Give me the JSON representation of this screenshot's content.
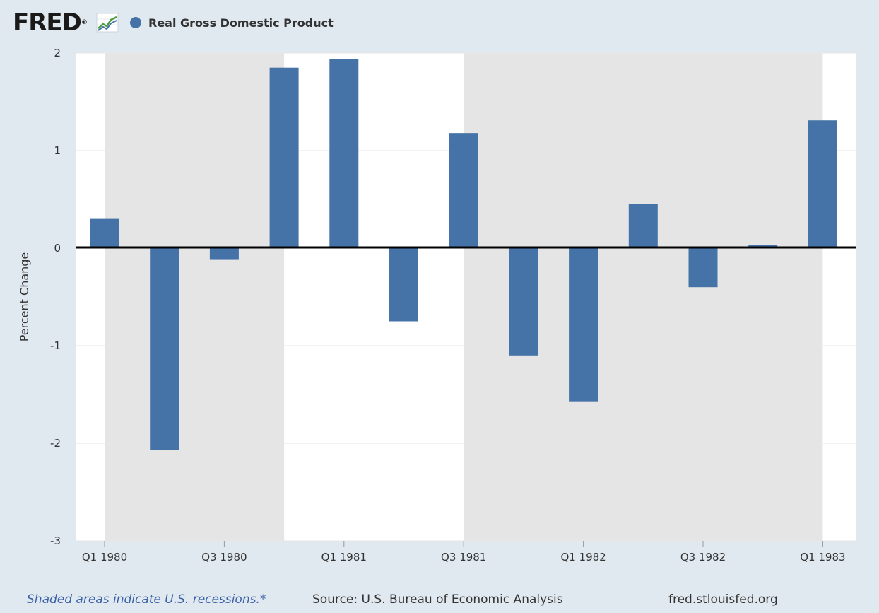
{
  "header": {
    "logo_text": "FRED",
    "logo_registered": "®",
    "legend_label": "Real Gross Domestic Product"
  },
  "colors": {
    "series": "#4572a7",
    "recession_shading": "#e5e5e5",
    "plot_background": "#ffffff",
    "page_background": "#e1e9f0",
    "zero_line": "#000000",
    "note_link": "#3b62a6"
  },
  "footer": {
    "note": "Shaded areas indicate U.S. recessions.*",
    "source": "Source: U.S. Bureau of Economic Analysis",
    "url": "fred.stlouisfed.org"
  },
  "chart_data": {
    "type": "bar",
    "ylabel": "Percent Change",
    "ylim": [
      -3,
      2
    ],
    "yticks": [
      2,
      1,
      0,
      -1,
      -2,
      -3
    ],
    "grid": true,
    "legend_position": "top-left",
    "categories": [
      "Q1 1980",
      "Q2 1980",
      "Q3 1980",
      "Q4 1980",
      "Q1 1981",
      "Q2 1981",
      "Q3 1981",
      "Q4 1981",
      "Q1 1982",
      "Q2 1982",
      "Q3 1982",
      "Q4 1982",
      "Q1 1983"
    ],
    "x_tick_labels": [
      "Q1 1980",
      "Q3 1980",
      "Q1 1981",
      "Q3 1981",
      "Q1 1982",
      "Q3 1982",
      "Q1 1983"
    ],
    "series": [
      {
        "name": "Real Gross Domestic Product",
        "values": [
          0.3,
          -2.07,
          -0.12,
          1.85,
          1.94,
          -0.75,
          1.18,
          -1.1,
          -1.57,
          0.45,
          -0.4,
          0.03,
          1.31
        ]
      }
    ],
    "recessions": [
      {
        "start": "Q1 1980",
        "end": "Q3 1980"
      },
      {
        "start": "Q3 1981",
        "end": "Q4 1982"
      }
    ]
  }
}
